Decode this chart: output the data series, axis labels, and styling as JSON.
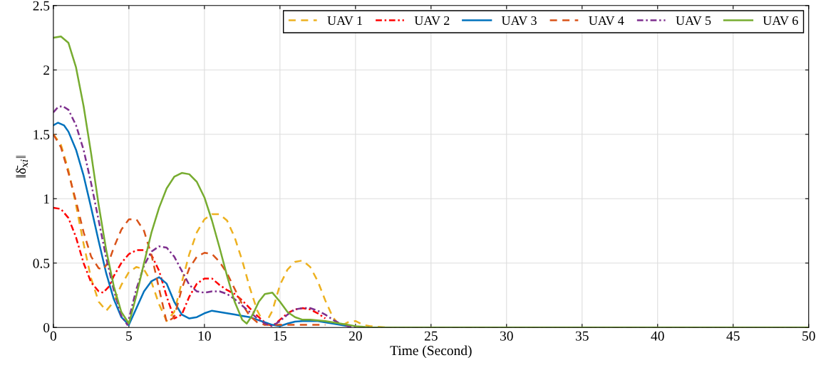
{
  "chart_data": {
    "type": "line",
    "xlabel": "Time (Second)",
    "ylabel": "‖δ̄$_{xi}$‖",
    "xlim": [
      0,
      50
    ],
    "ylim": [
      0,
      2.5
    ],
    "xticks": [
      0,
      5,
      10,
      15,
      20,
      25,
      30,
      35,
      40,
      45,
      50
    ],
    "yticks": [
      0,
      0.5,
      1,
      1.5,
      2,
      2.5
    ],
    "grid": true,
    "legend": "top right",
    "marker": "none",
    "series": [
      {
        "name": "UAV 1",
        "color": "#edb120",
        "line_style": "dashed",
        "x": [
          0,
          0.5,
          1,
          1.5,
          2,
          2.5,
          3,
          3.5,
          4,
          4.5,
          5,
          5.5,
          6,
          6.5,
          7,
          7.5,
          8,
          8.5,
          9,
          9.5,
          10,
          10.5,
          11,
          11.5,
          12,
          12.5,
          13,
          13.5,
          14,
          14.5,
          15,
          15.5,
          16,
          16.5,
          17,
          17.5,
          18,
          18.5,
          19,
          19.5,
          20,
          20.5,
          21,
          22,
          50
        ],
        "values": [
          1.5,
          1.42,
          1.22,
          0.95,
          0.65,
          0.38,
          0.2,
          0.13,
          0.2,
          0.33,
          0.43,
          0.47,
          0.45,
          0.35,
          0.18,
          0.05,
          0.12,
          0.35,
          0.57,
          0.74,
          0.84,
          0.88,
          0.88,
          0.83,
          0.7,
          0.52,
          0.31,
          0.13,
          0.02,
          0.13,
          0.33,
          0.45,
          0.51,
          0.52,
          0.47,
          0.36,
          0.21,
          0.08,
          0.01,
          0.04,
          0.05,
          0.02,
          0.01,
          0,
          0
        ]
      },
      {
        "name": "UAV 2",
        "color": "#ff0000",
        "line_style": "dashdot",
        "x": [
          0,
          0.5,
          1,
          1.5,
          2,
          2.5,
          3,
          3.3,
          3.7,
          4,
          4.5,
          5,
          5.5,
          6,
          6.5,
          7,
          7.5,
          8,
          8.5,
          9,
          9.5,
          10,
          10.5,
          11,
          11.5,
          12,
          12.5,
          13,
          13.5,
          14,
          14.5,
          15,
          15.5,
          16,
          16.5,
          17,
          17.5,
          18
        ],
        "values": [
          0.93,
          0.92,
          0.85,
          0.7,
          0.5,
          0.35,
          0.28,
          0.27,
          0.32,
          0.4,
          0.5,
          0.57,
          0.6,
          0.6,
          0.56,
          0.44,
          0.24,
          0.07,
          0.1,
          0.24,
          0.34,
          0.38,
          0.38,
          0.33,
          0.29,
          0.26,
          0.21,
          0.15,
          0.09,
          0.04,
          0.01,
          0.06,
          0.11,
          0.14,
          0.15,
          0.14,
          0.11,
          0.07
        ]
      },
      {
        "name": "UAV 3",
        "color": "#0072bd",
        "line_style": "solid",
        "x": [
          0,
          0.3,
          0.7,
          1,
          1.5,
          2,
          2.5,
          3,
          3.5,
          4,
          4.5,
          5,
          5.5,
          6,
          6.5,
          7,
          7.5,
          8,
          8.5,
          9,
          9.5,
          10,
          10.5,
          11,
          11.5,
          12,
          12.5,
          13,
          13.5,
          14,
          14.5,
          15,
          15.5,
          16,
          16.5,
          17,
          17.5,
          18,
          18.5,
          19,
          19.5
        ],
        "values": [
          1.57,
          1.59,
          1.57,
          1.52,
          1.38,
          1.18,
          0.93,
          0.67,
          0.42,
          0.22,
          0.08,
          0.02,
          0.15,
          0.28,
          0.36,
          0.39,
          0.34,
          0.2,
          0.1,
          0.07,
          0.08,
          0.11,
          0.13,
          0.12,
          0.11,
          0.1,
          0.09,
          0.08,
          0.06,
          0.04,
          0.02,
          0.01,
          0.03,
          0.045,
          0.05,
          0.05,
          0.05,
          0.04,
          0.03,
          0.02,
          0.01
        ]
      },
      {
        "name": "UAV 4",
        "color": "#d95319",
        "line_style": "dashed",
        "x": [
          0,
          0.5,
          1,
          1.5,
          2,
          2.5,
          3,
          3.3,
          3.7,
          4,
          4.5,
          5,
          5.5,
          6,
          6.5,
          7,
          7.5,
          8,
          8.5,
          9,
          9.5,
          10,
          10.5,
          11,
          11.5,
          12,
          12.5,
          13,
          13.5,
          14,
          15,
          16,
          17,
          18
        ],
        "values": [
          1.5,
          1.4,
          1.2,
          0.98,
          0.74,
          0.55,
          0.46,
          0.45,
          0.52,
          0.62,
          0.76,
          0.84,
          0.84,
          0.75,
          0.56,
          0.3,
          0.04,
          0.08,
          0.3,
          0.46,
          0.55,
          0.58,
          0.57,
          0.51,
          0.42,
          0.3,
          0.18,
          0.09,
          0.04,
          0.02,
          0.02,
          0.02,
          0.02,
          0.02
        ]
      },
      {
        "name": "UAV 5",
        "color": "#7e2f8e",
        "line_style": "dashdot",
        "x": [
          0,
          0.3,
          0.6,
          1,
          1.5,
          2,
          2.5,
          3,
          3.5,
          4,
          4.5,
          4.9,
          5.5,
          6,
          6.5,
          7,
          7.5,
          8,
          8.5,
          9,
          9.5,
          10,
          10.5,
          11,
          11.5,
          12,
          12.5,
          13,
          13.5,
          14,
          14.5,
          15,
          15.5,
          16,
          16.5,
          17,
          17.5,
          18,
          18.5,
          19,
          19.5,
          20,
          21,
          50
        ],
        "values": [
          1.67,
          1.71,
          1.72,
          1.69,
          1.57,
          1.38,
          1.12,
          0.83,
          0.54,
          0.29,
          0.09,
          0.02,
          0.3,
          0.48,
          0.59,
          0.63,
          0.62,
          0.55,
          0.44,
          0.33,
          0.28,
          0.27,
          0.28,
          0.28,
          0.26,
          0.22,
          0.17,
          0.12,
          0.07,
          0.03,
          0.01,
          0.05,
          0.1,
          0.14,
          0.15,
          0.15,
          0.13,
          0.1,
          0.06,
          0.03,
          0.01,
          0.005,
          0,
          0
        ]
      },
      {
        "name": "UAV 6",
        "color": "#77ac30",
        "line_style": "solid",
        "x": [
          0,
          0.5,
          1,
          1.5,
          2,
          2.5,
          3,
          3.5,
          4,
          4.5,
          5,
          5.5,
          6,
          6.5,
          7,
          7.5,
          8,
          8.5,
          9,
          9.5,
          10,
          10.5,
          11,
          11.5,
          12,
          12.5,
          12.8,
          13.2,
          13.6,
          14,
          14.5,
          15,
          15.5,
          16,
          16.5,
          17,
          17.5,
          18,
          18.5,
          19,
          19.5,
          20,
          21,
          50
        ],
        "values": [
          2.25,
          2.26,
          2.21,
          2.02,
          1.72,
          1.35,
          0.95,
          0.6,
          0.32,
          0.12,
          0.03,
          0.25,
          0.5,
          0.74,
          0.93,
          1.08,
          1.17,
          1.2,
          1.19,
          1.13,
          1.01,
          0.83,
          0.62,
          0.4,
          0.2,
          0.06,
          0.03,
          0.1,
          0.2,
          0.26,
          0.27,
          0.2,
          0.12,
          0.08,
          0.06,
          0.06,
          0.055,
          0.05,
          0.04,
          0.03,
          0.02,
          0.01,
          0,
          0
        ]
      }
    ]
  }
}
